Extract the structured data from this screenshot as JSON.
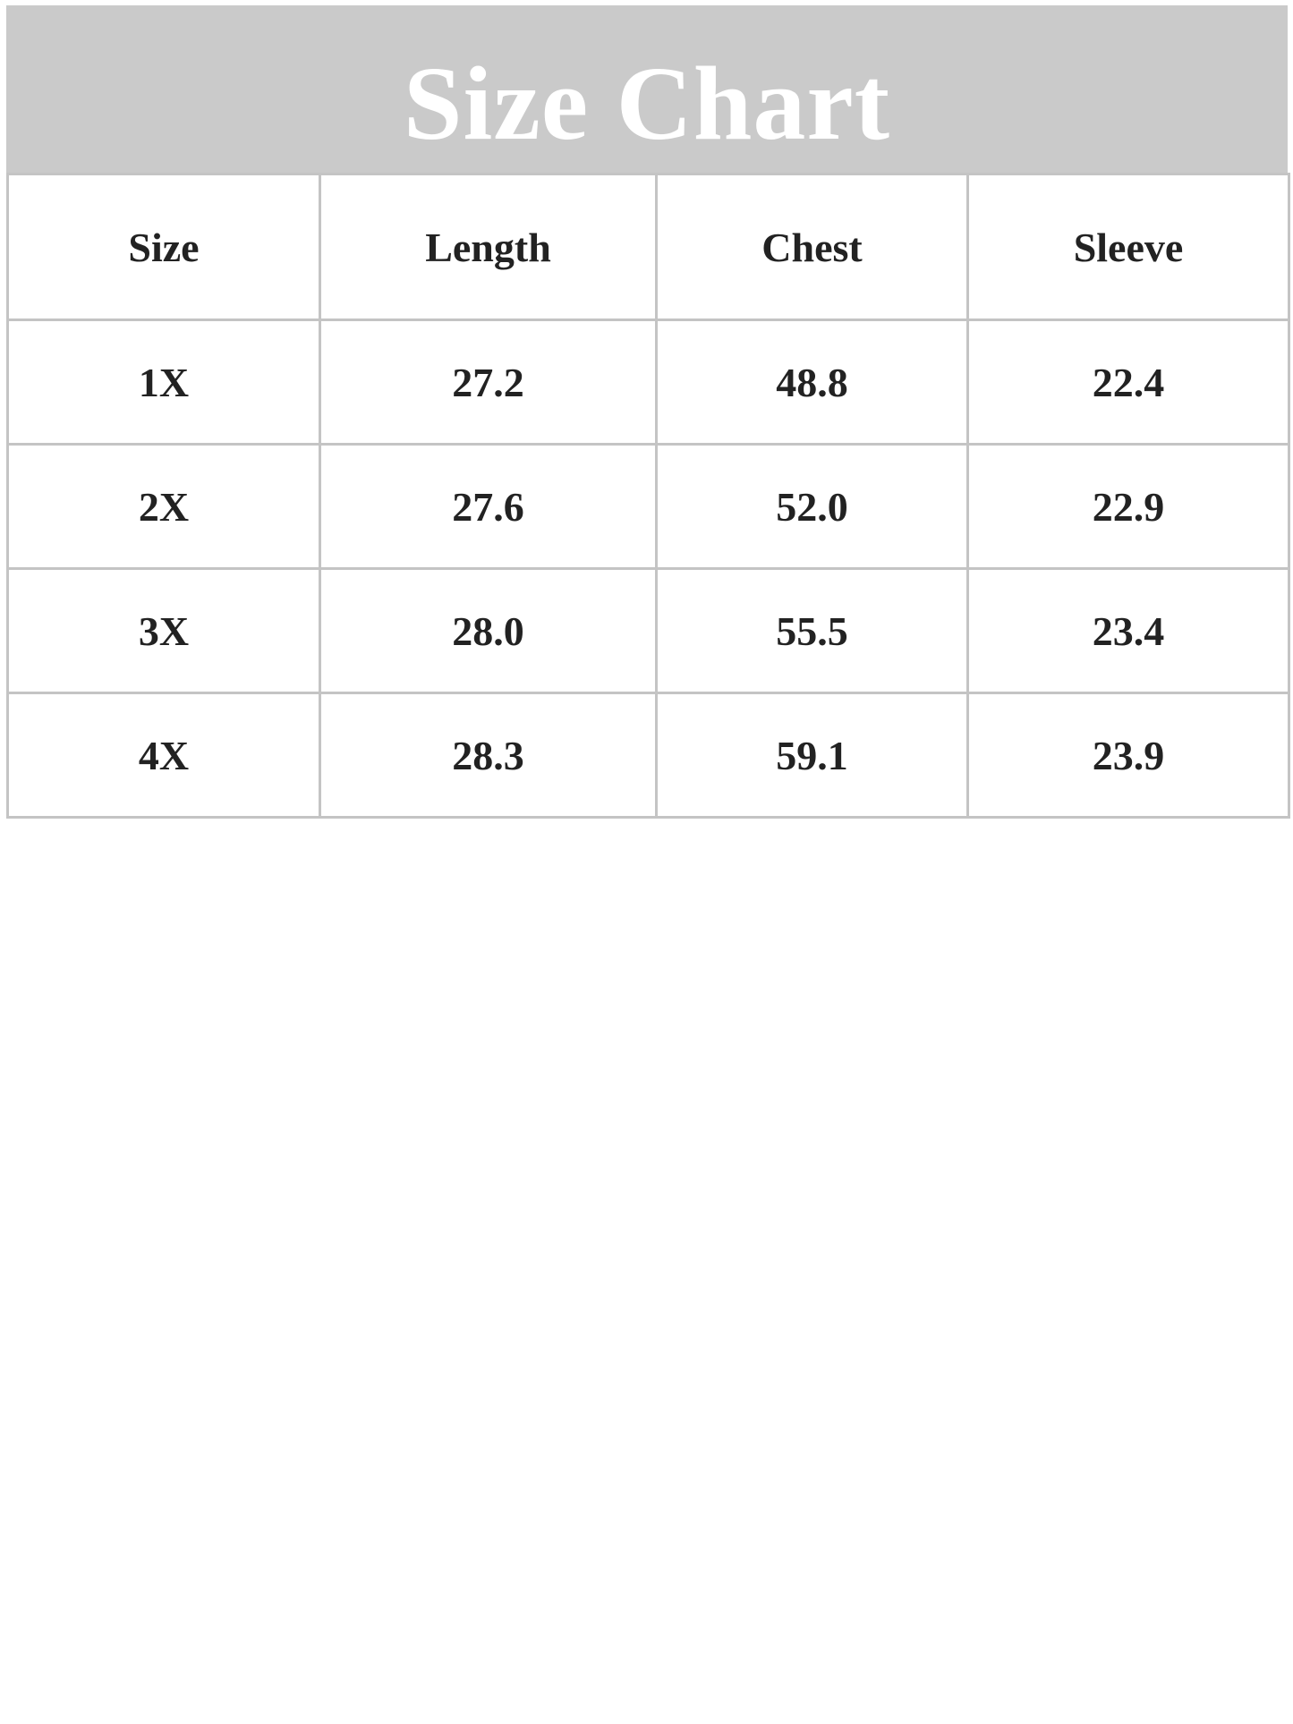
{
  "title": "Size Chart",
  "colors": {
    "title_band": "#cacaca",
    "title_text": "#ffffff",
    "grid": "#c4c4c4",
    "text": "#222222"
  },
  "table": {
    "headers": [
      "Size",
      "Length",
      "Chest",
      "Sleeve"
    ],
    "rows": [
      [
        "1X",
        "27.2",
        "48.8",
        "22.4"
      ],
      [
        "2X",
        "27.6",
        "52.0",
        "22.9"
      ],
      [
        "3X",
        "28.0",
        "55.5",
        "23.4"
      ],
      [
        "4X",
        "28.3",
        "59.1",
        "23.9"
      ]
    ]
  }
}
